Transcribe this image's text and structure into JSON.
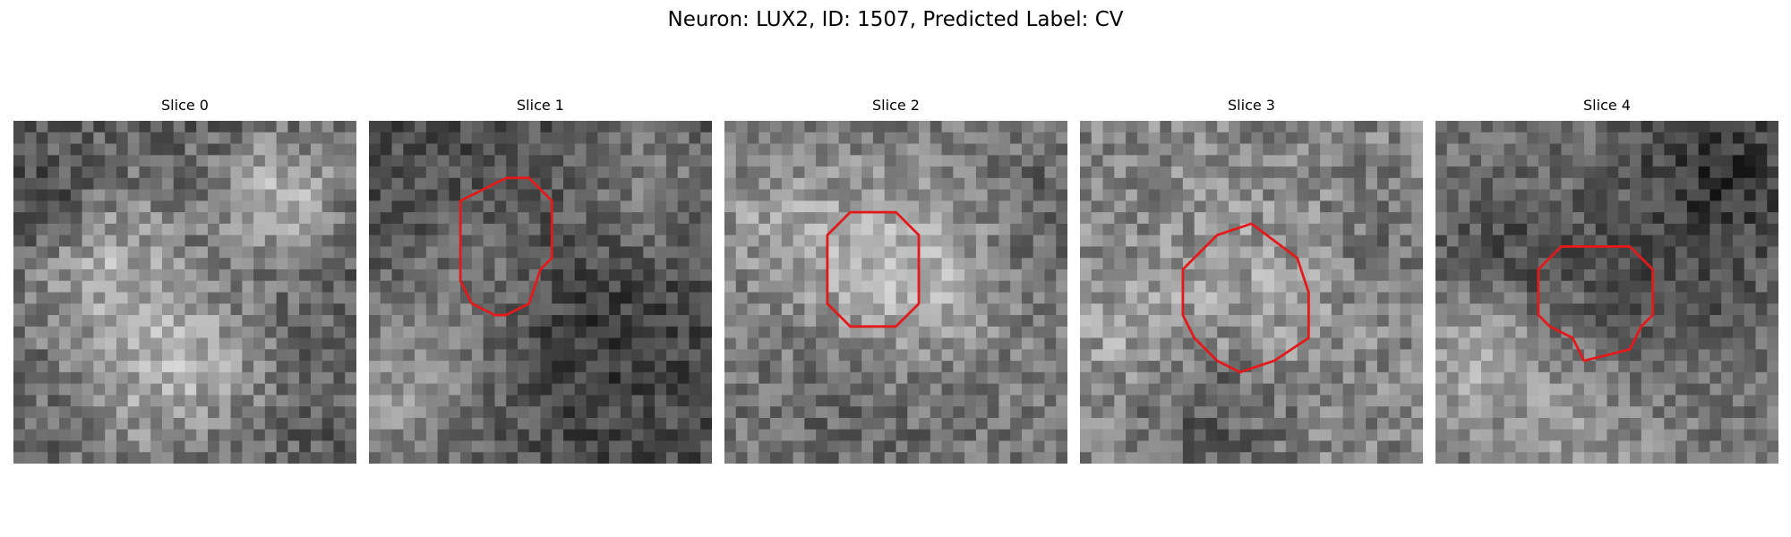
{
  "figure": {
    "title": "Neuron: LUX2, ID: 1507, Predicted Label: CV"
  },
  "colors": {
    "background": "#ffffff",
    "text": "#000000",
    "contour": "#e31a1c",
    "colormap": "grayscale"
  },
  "panels": [
    {
      "title": "Slice 0",
      "has_contour": false
    },
    {
      "title": "Slice 1",
      "has_contour": true
    },
    {
      "title": "Slice 2",
      "has_contour": true
    },
    {
      "title": "Slice 3",
      "has_contour": true
    },
    {
      "title": "Slice 4",
      "has_contour": true
    }
  ]
}
